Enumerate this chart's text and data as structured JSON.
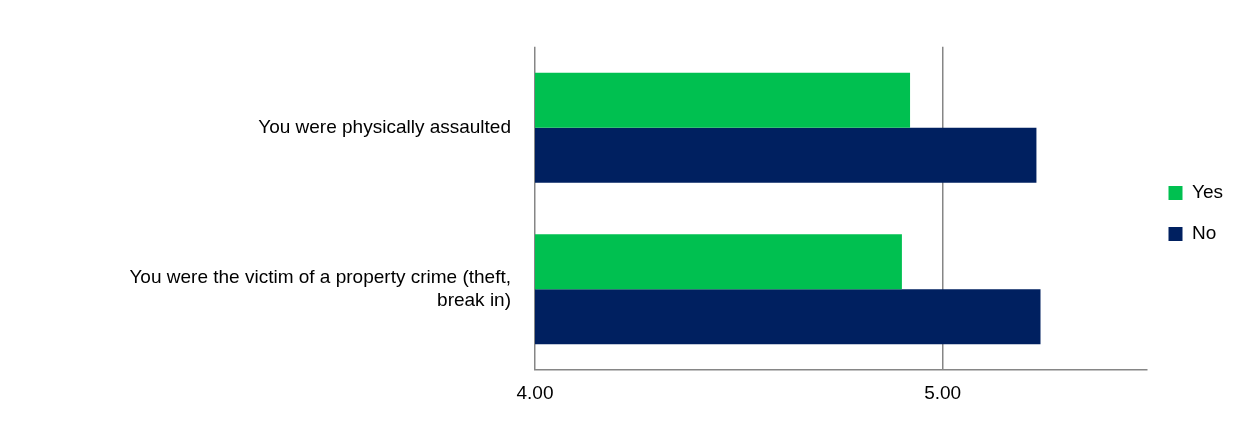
{
  "chart_data": {
    "type": "bar",
    "orientation": "horizontal",
    "categories": [
      "You were physically assaulted",
      "You were the victim of a property crime (theft, break in)"
    ],
    "series": [
      {
        "name": "Yes",
        "color": "#00c050",
        "values": [
          4.92,
          4.9
        ]
      },
      {
        "name": "No",
        "color": "#002060",
        "values": [
          5.23,
          5.24
        ]
      }
    ],
    "xlim": [
      4,
      5.5
    ],
    "xticks": [
      {
        "value": 4,
        "label": "4.00"
      },
      {
        "value": 5,
        "label": "5.00"
      }
    ],
    "grid": "x",
    "legend": "right"
  }
}
